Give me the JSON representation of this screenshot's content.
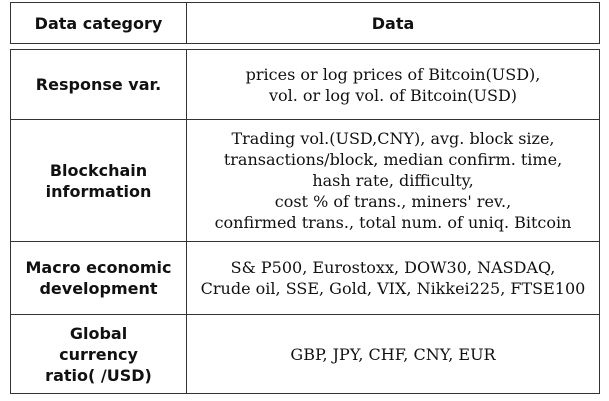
{
  "table": {
    "header": {
      "category": "Data category",
      "data": "Data"
    },
    "rows": [
      {
        "category_lines": [
          "Response var."
        ],
        "data_lines": [
          "prices or log prices of Bitcoin(USD),",
          "vol. or log vol. of Bitcoin(USD)"
        ]
      },
      {
        "category_lines": [
          "Blockchain",
          "information"
        ],
        "data_lines": [
          "Trading vol.(USD,CNY), avg. block size,",
          "transactions/block, median confirm. time,",
          "hash rate, difficulty,",
          "cost % of trans., miners' rev.,",
          "confirmed trans., total num. of uniq. Bitcoin"
        ]
      },
      {
        "category_lines": [
          "Macro economic",
          "development"
        ],
        "data_lines": [
          "S& P500, Eurostoxx, DOW30, NASDAQ,",
          "Crude oil, SSE, Gold, VIX, Nikkei225, FTSE100"
        ]
      },
      {
        "category_lines": [
          "Global",
          "currency",
          "ratio( /USD)"
        ],
        "data_lines": [
          "GBP, JPY, CHF, CNY, EUR"
        ]
      }
    ]
  }
}
